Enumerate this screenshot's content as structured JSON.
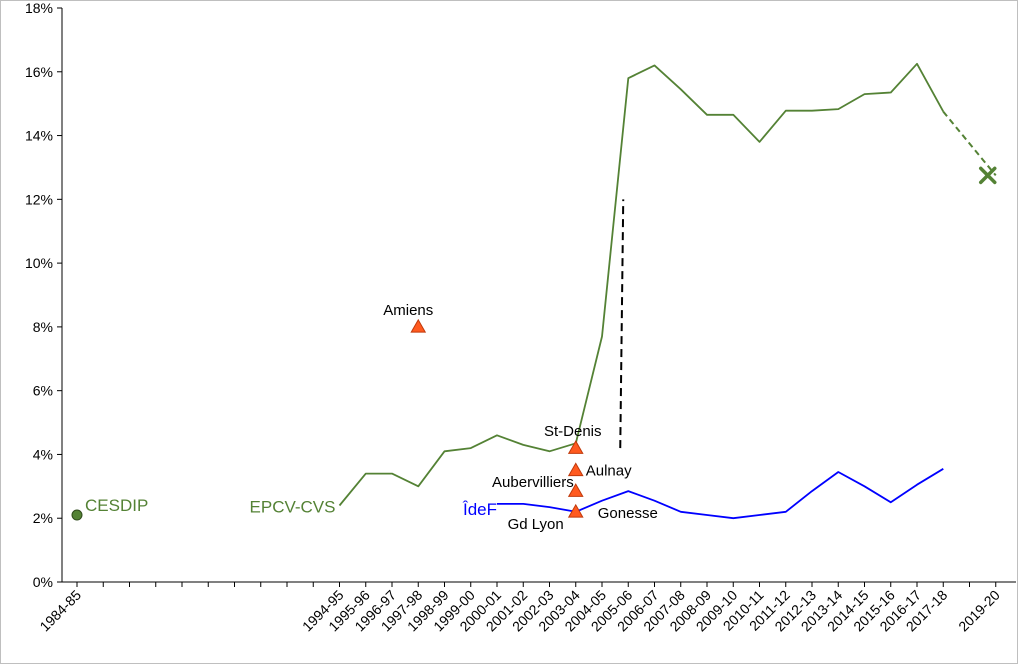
{
  "chart_data": {
    "type": "line",
    "ylim": [
      0,
      18
    ],
    "yticks": [
      {
        "value": 0,
        "label": "0%"
      },
      {
        "value": 2,
        "label": "2%"
      },
      {
        "value": 4,
        "label": "4%"
      },
      {
        "value": 6,
        "label": "6%"
      },
      {
        "value": 8,
        "label": "8%"
      },
      {
        "value": 10,
        "label": "10%"
      },
      {
        "value": 12,
        "label": "12%"
      },
      {
        "value": 14,
        "label": "14%"
      },
      {
        "value": 16,
        "label": "16%"
      },
      {
        "value": 18,
        "label": "18%"
      }
    ],
    "categories": [
      "1984-85",
      "",
      "",
      "",
      "",
      "",
      "",
      "",
      "",
      "",
      "1994-95",
      "1995-96",
      "1996-97",
      "1997-98",
      "1998-99",
      "1999-00",
      "2000-01",
      "2001-02",
      "2002-03",
      "2003-04",
      "2004-05",
      "2005-06",
      "2006-07",
      "2007-08",
      "2008-09",
      "2009-10",
      "2010-11",
      "2011-12",
      "2012-13",
      "2013-14",
      "2014-15",
      "2015-16",
      "2016-17",
      "2017-18",
      "",
      "2019-20"
    ],
    "series": [
      {
        "name": "EPCV-CVS",
        "color": "#548235",
        "points": [
          {
            "x": "1994-95",
            "y": 2.4
          },
          {
            "x": "1995-96",
            "y": 3.4
          },
          {
            "x": "1996-97",
            "y": 3.4
          },
          {
            "x": "1997-98",
            "y": 3.0
          },
          {
            "x": "1998-99",
            "y": 4.1
          },
          {
            "x": "1999-00",
            "y": 4.2
          },
          {
            "x": "2000-01",
            "y": 4.6
          },
          {
            "x": "2001-02",
            "y": 4.3
          },
          {
            "x": "2002-03",
            "y": 4.1
          },
          {
            "x": "2003-04",
            "y": 4.35
          },
          {
            "x": "2004-05",
            "y": 7.7
          },
          {
            "x": "2005-06",
            "y": 15.8
          },
          {
            "x": "2006-07",
            "y": 16.2
          },
          {
            "x": "2007-08",
            "y": 15.45
          },
          {
            "x": "2008-09",
            "y": 14.65
          },
          {
            "x": "2009-10",
            "y": 14.65
          },
          {
            "x": "2010-11",
            "y": 13.8
          },
          {
            "x": "2011-12",
            "y": 14.78
          },
          {
            "x": "2012-13",
            "y": 14.78
          },
          {
            "x": "2013-14",
            "y": 14.83
          },
          {
            "x": "2014-15",
            "y": 15.3
          },
          {
            "x": "2015-16",
            "y": 15.35
          },
          {
            "x": "2016-17",
            "y": 16.25
          },
          {
            "x": "2017-18",
            "y": 14.75
          }
        ],
        "projection_to": {
          "x": "2019-20",
          "y": 12.75
        }
      },
      {
        "name": "ÎdeF",
        "color": "#0000ff",
        "points": [
          {
            "x": "2000-01",
            "y": 2.45
          },
          {
            "x": "2001-02",
            "y": 2.45
          },
          {
            "x": "2002-03",
            "y": 2.35
          },
          {
            "x": "2003-04",
            "y": 2.2
          },
          {
            "x": "2004-05",
            "y": 2.55
          },
          {
            "x": "2005-06",
            "y": 2.85
          },
          {
            "x": "2006-07",
            "y": 2.55
          },
          {
            "x": "2007-08",
            "y": 2.2
          },
          {
            "x": "2008-09",
            "y": 2.1
          },
          {
            "x": "2009-10",
            "y": 2.0
          },
          {
            "x": "2010-11",
            "y": 2.1
          },
          {
            "x": "2011-12",
            "y": 2.2
          },
          {
            "x": "2012-13",
            "y": 2.85
          },
          {
            "x": "2013-14",
            "y": 3.45
          },
          {
            "x": "2014-15",
            "y": 3.0
          },
          {
            "x": "2015-16",
            "y": 2.5
          },
          {
            "x": "2016-17",
            "y": 3.05
          },
          {
            "x": "2017-18",
            "y": 3.55
          }
        ]
      }
    ],
    "cesdip": {
      "name": "CESDIP",
      "x": "1984-85",
      "y": 2.1,
      "color": "#548235"
    },
    "x_marker": {
      "x": "2019-20",
      "y": 12.75,
      "color": "#548235"
    },
    "dashed_break": {
      "x_from": "2005-06",
      "y_bottom": 4.2,
      "y_top": 12.0
    },
    "triangles": [
      {
        "label": "Amiens",
        "x": "1997-98",
        "y": 8.0
      },
      {
        "label": "St-Denis",
        "x": "2003-04",
        "y": 4.2
      },
      {
        "label": "Aulnay",
        "x": "2003-04",
        "y": 3.5
      },
      {
        "label": "Aubervilliers",
        "x": "2003-04",
        "y": 2.85
      },
      {
        "label": "Gd Lyon",
        "x": "2003-04",
        "y": 2.2
      },
      {
        "label": "Gonesse",
        "x": "2003-04",
        "y": 2.2
      }
    ],
    "triangle_color": "#ff5a1f",
    "grid": false,
    "legend": "none"
  }
}
